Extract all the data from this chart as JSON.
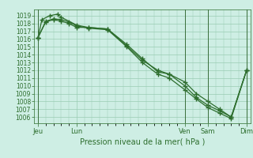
{
  "xlabel": "Pression niveau de la mer( hPa )",
  "background_color": "#ceeee4",
  "grid_color": "#99ccb3",
  "line_color": "#2d6e2d",
  "ylim": [
    1005.2,
    1019.8
  ],
  "yticks": [
    1006,
    1007,
    1008,
    1009,
    1010,
    1011,
    1012,
    1013,
    1014,
    1015,
    1016,
    1017,
    1018,
    1019
  ],
  "xlim": [
    0,
    28
  ],
  "day_positions": [
    0.5,
    5.5,
    19.5,
    22.5,
    27.5
  ],
  "day_labels": [
    "Jeu",
    "Lun",
    "Ven",
    "Sam",
    "Dim"
  ],
  "vline_positions": [
    0.5,
    19.5,
    22.5,
    27.5
  ],
  "series1_x": [
    0.5,
    1.5,
    2.5,
    3.5,
    4.5,
    5.5,
    7.0,
    9.5,
    12.0,
    14.0,
    16.0,
    17.5,
    19.5,
    21.0,
    22.5,
    24.0,
    25.5,
    27.5
  ],
  "series1_y": [
    1016.2,
    1018.2,
    1018.5,
    1018.3,
    1018.0,
    1017.5,
    1017.5,
    1017.3,
    1015.3,
    1013.5,
    1011.8,
    1011.5,
    1010.5,
    1009.0,
    1008.0,
    1007.0,
    1006.0,
    1012.0
  ],
  "series2_x": [
    0.5,
    1.0,
    2.0,
    3.0,
    3.5,
    5.5,
    7.0,
    9.5,
    12.0,
    14.0,
    16.0,
    17.5,
    19.5,
    21.0,
    22.5,
    24.0,
    25.5,
    27.5
  ],
  "series2_y": [
    1016.2,
    1018.5,
    1019.0,
    1019.2,
    1018.8,
    1017.8,
    1017.5,
    1017.3,
    1015.1,
    1013.3,
    1012.0,
    1011.5,
    1010.0,
    1008.5,
    1007.5,
    1006.8,
    1006.0,
    1012.0
  ],
  "series3_x": [
    0.5,
    1.5,
    2.5,
    3.5,
    4.5,
    5.5,
    7.0,
    9.5,
    12.0,
    14.0,
    16.0,
    17.5,
    19.5,
    21.0,
    22.5,
    24.0,
    25.5,
    27.5
  ],
  "series3_y": [
    1016.2,
    1018.3,
    1018.6,
    1018.5,
    1018.2,
    1017.7,
    1017.4,
    1017.2,
    1015.0,
    1013.0,
    1011.5,
    1011.0,
    1009.5,
    1008.3,
    1007.2,
    1006.5,
    1005.8,
    1012.0
  ]
}
